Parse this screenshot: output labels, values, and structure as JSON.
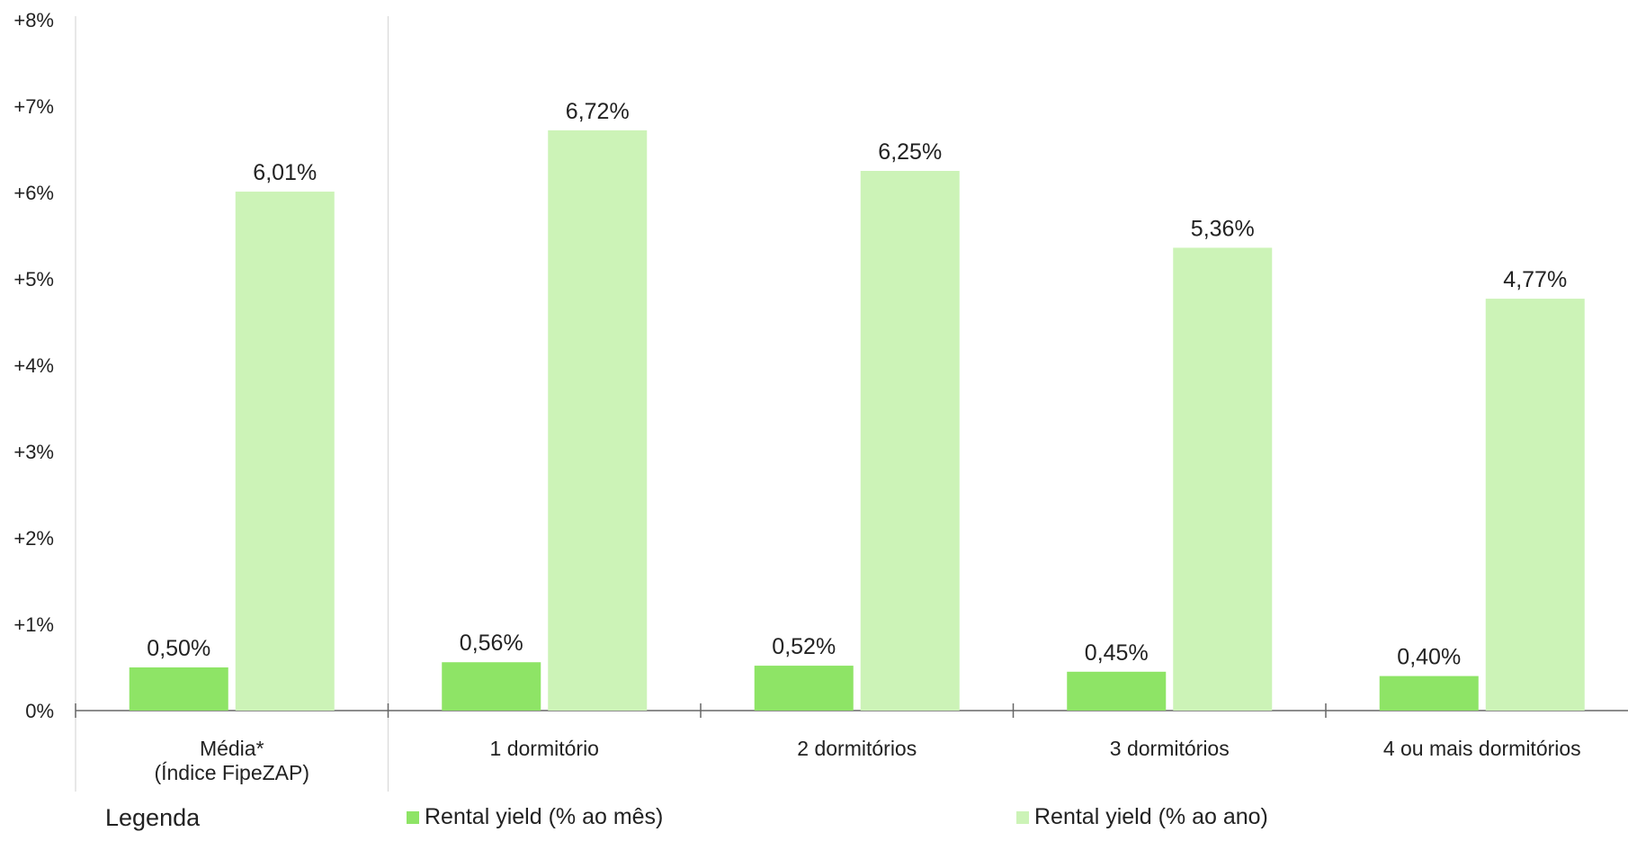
{
  "chart_data": {
    "type": "bar",
    "categories": [
      "Média*\n(Índice FipeZAP)",
      "1 dormitório",
      "2 dormitórios",
      "3 dormitórios",
      "4 ou mais dormitórios"
    ],
    "series": [
      {
        "name": "Rental yield (% ao mês)",
        "color": "#8ee466",
        "values": [
          0.5,
          0.56,
          0.52,
          0.45,
          0.4
        ],
        "labels": [
          "0,50%",
          "0,56%",
          "0,52%",
          "0,45%",
          "0,40%"
        ]
      },
      {
        "name": "Rental yield (% ao ano)",
        "color": "#ccf3b7",
        "values": [
          6.01,
          6.72,
          6.25,
          5.36,
          4.77
        ],
        "labels": [
          "6,01%",
          "6,72%",
          "6,25%",
          "5,36%",
          "4,77%"
        ]
      }
    ],
    "ylim": [
      0,
      8
    ],
    "yticks": [
      0,
      1,
      2,
      3,
      4,
      5,
      6,
      7,
      8
    ],
    "ytick_labels": [
      "0%",
      "+1%",
      "+2%",
      "+3%",
      "+4%",
      "+5%",
      "+6%",
      "+7%",
      "+8%"
    ],
    "grid": false
  },
  "legend": {
    "title": "Legenda",
    "monthly": "Rental yield (% ao mês)",
    "annual": "Rental yield (% ao ano)"
  }
}
